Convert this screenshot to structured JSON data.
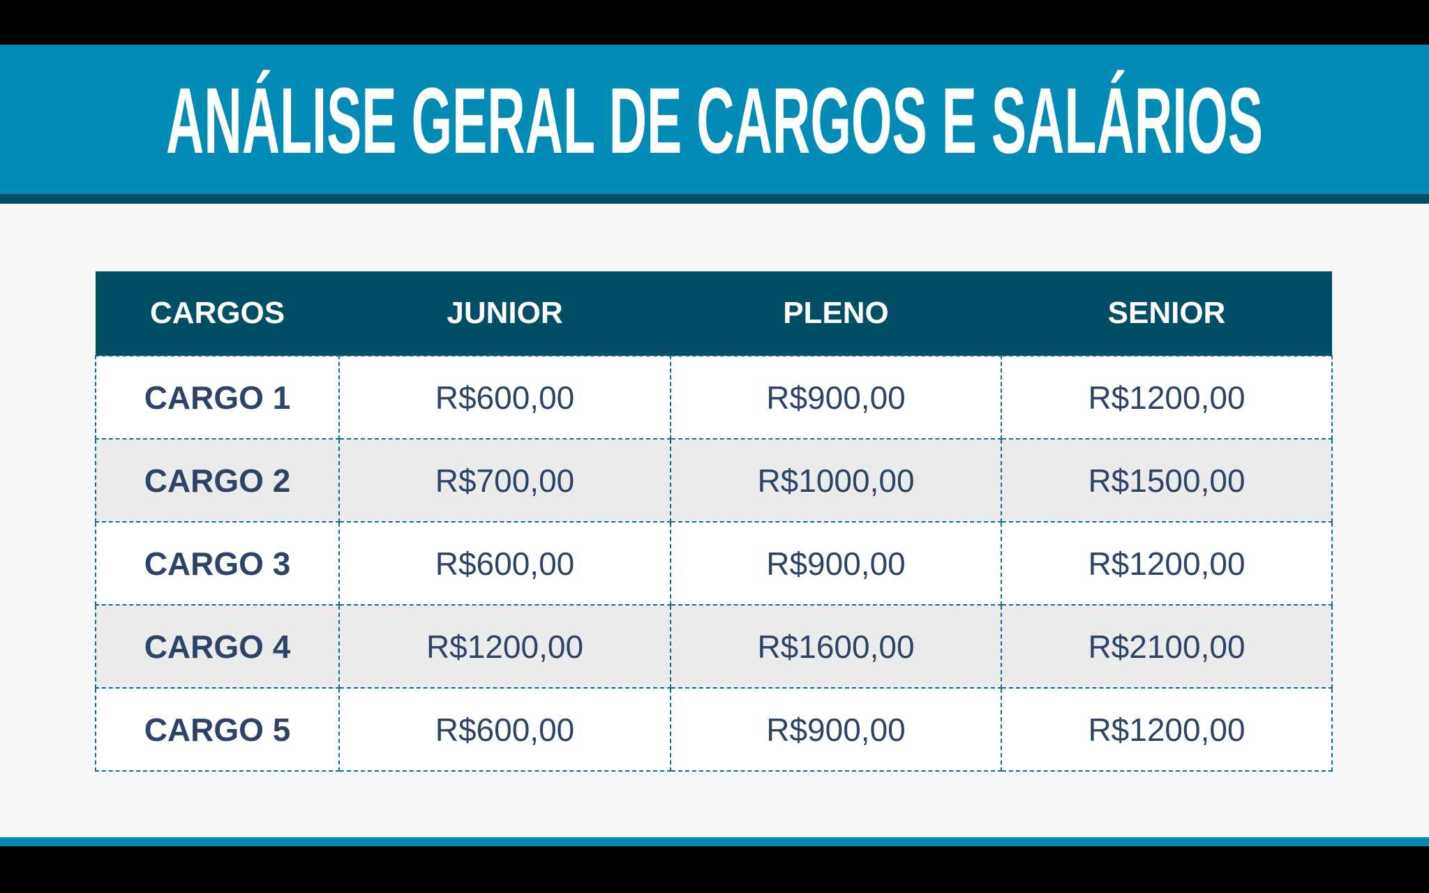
{
  "title": "ANÁLISE GERAL DE CARGOS E SALÁRIOS",
  "colors": {
    "header_band": "#028bb5",
    "table_header": "#014e66",
    "text": "#2e4466",
    "row_alt": "#ebebeb"
  },
  "table": {
    "headers": [
      "CARGOS",
      "JUNIOR",
      "PLENO",
      "SENIOR"
    ],
    "rows": [
      [
        "CARGO 1",
        "R$600,00",
        "R$900,00",
        "R$1200,00"
      ],
      [
        "CARGO 2",
        "R$700,00",
        "R$1000,00",
        "R$1500,00"
      ],
      [
        "CARGO 3",
        "R$600,00",
        "R$900,00",
        "R$1200,00"
      ],
      [
        "CARGO 4",
        "R$1200,00",
        "R$1600,00",
        "R$2100,00"
      ],
      [
        "CARGO 5",
        "R$600,00",
        "R$900,00",
        "R$1200,00"
      ]
    ]
  }
}
